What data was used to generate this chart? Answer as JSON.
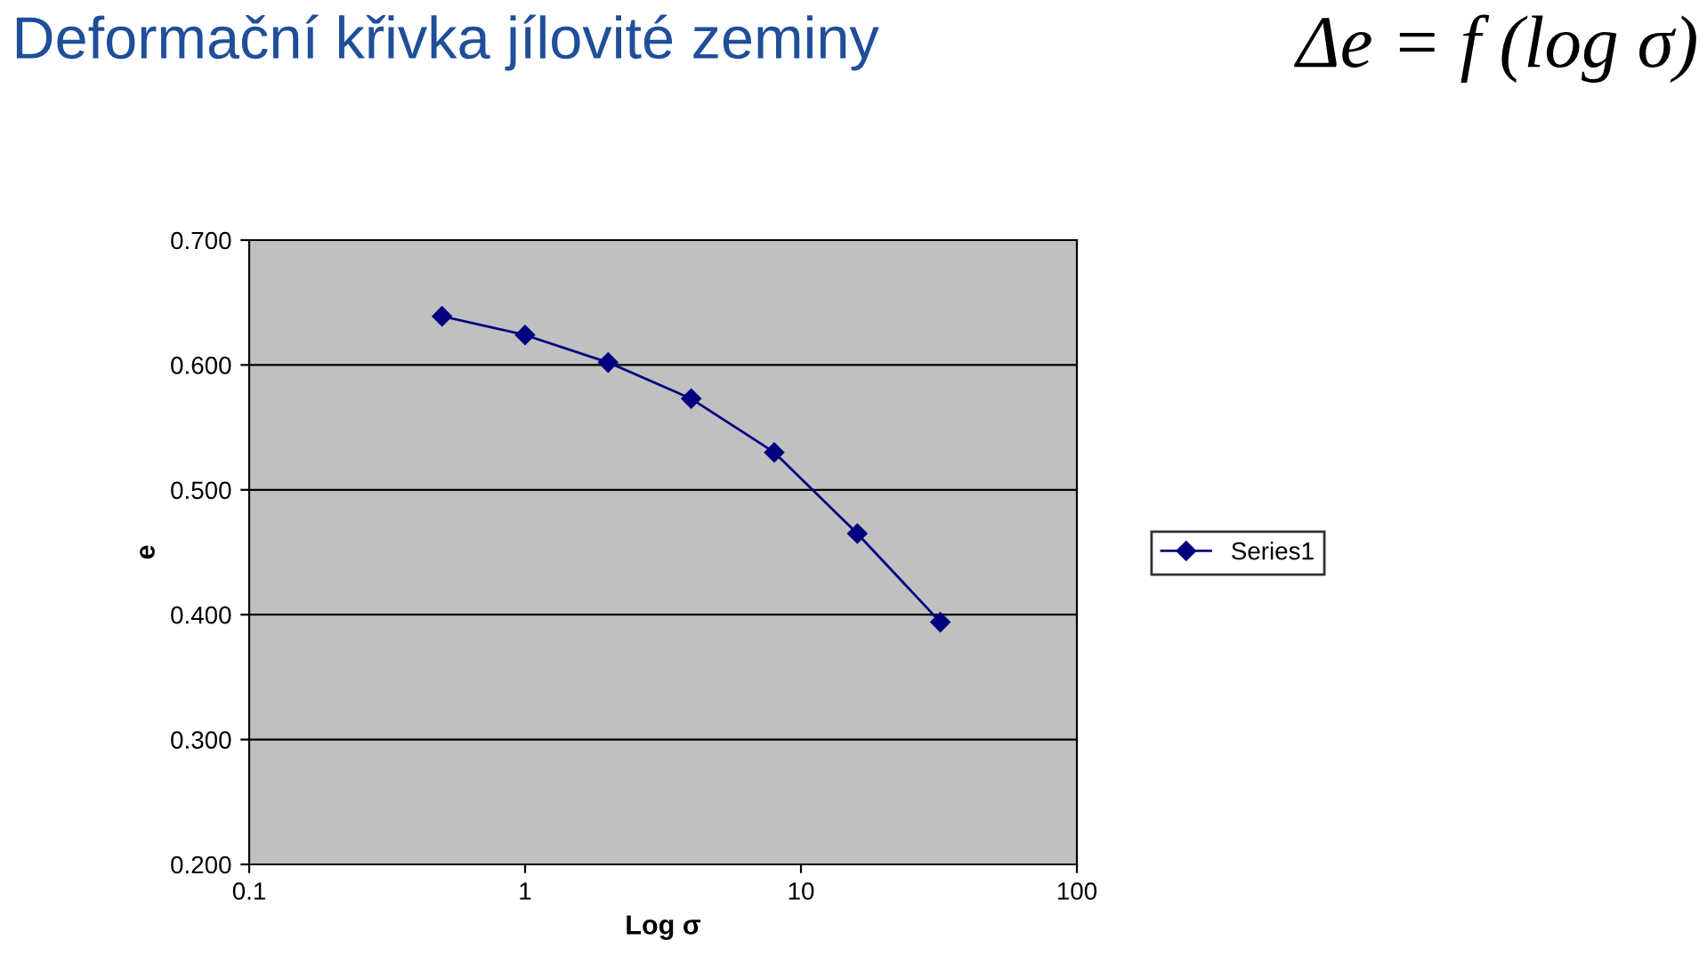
{
  "chart_data": {
    "type": "line",
    "title": "Deformační křivka jílovité zeminy",
    "annotations": [
      "Δe = f (log σ)"
    ],
    "xlabel": "Log σ",
    "ylabel": "e",
    "x": [
      0.5,
      1,
      2,
      4,
      8,
      16,
      32
    ],
    "series": [
      {
        "name": "Series1",
        "color": "#000080",
        "values": [
          0.639,
          0.624,
          0.602,
          0.573,
          0.53,
          0.465,
          0.394
        ]
      }
    ],
    "log": "x",
    "xlim": [
      0.1,
      100
    ],
    "xticks": [
      0.1,
      1,
      10,
      100
    ],
    "ylim": [
      0.2,
      0.7
    ],
    "yticks": [
      {
        "value": 0.2,
        "label": "0.200"
      },
      {
        "value": 0.3,
        "label": "0.300"
      },
      {
        "value": 0.4,
        "label": "0.400"
      },
      {
        "value": 0.5,
        "label": "0.500"
      },
      {
        "value": 0.6,
        "label": "0.600"
      },
      {
        "value": 0.7,
        "label": "0.700"
      }
    ],
    "grid": "y",
    "legend": "right",
    "marker": "diamond",
    "line_style": "solid"
  }
}
